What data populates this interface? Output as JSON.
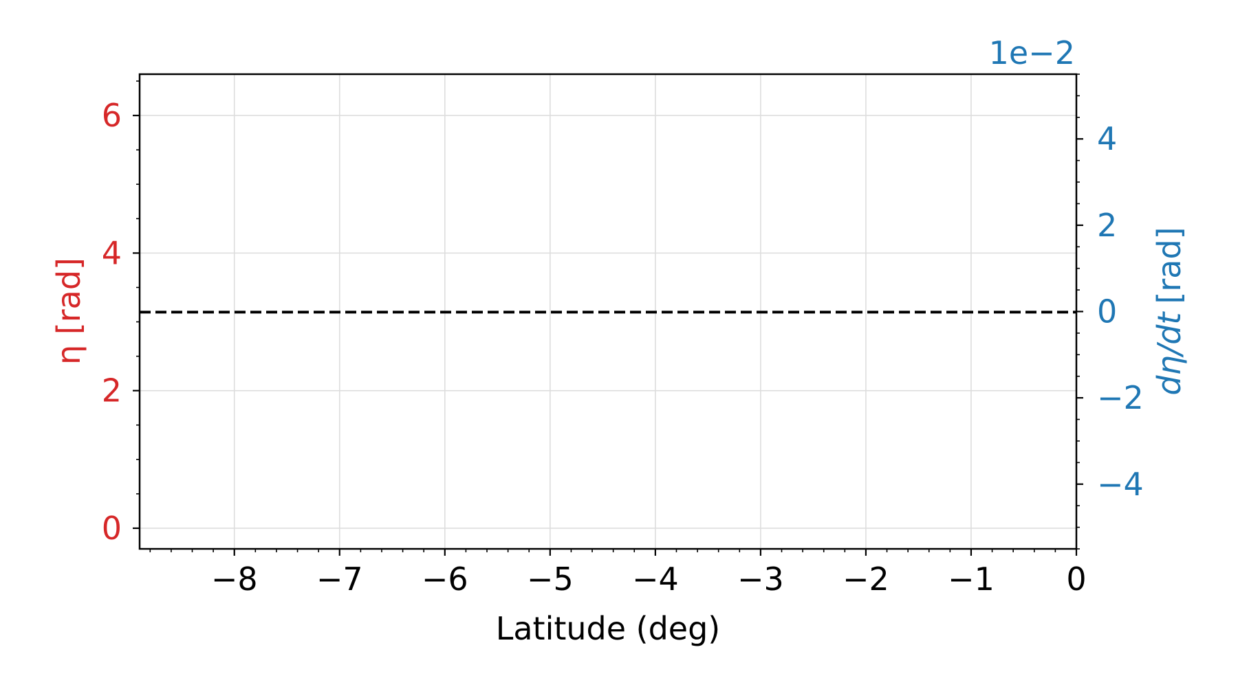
{
  "chart_data": {
    "type": "line",
    "xlabel": "Latitude (deg)",
    "ylabel_left": "η [rad]",
    "ylabel_right_var": "dη/dt",
    "ylabel_right_unit": "[rad]",
    "right_axis_multiplier": "1e−2",
    "xlim": [
      -8.9,
      0
    ],
    "ylim_left": [
      -0.3,
      6.6
    ],
    "ylim_right": [
      -5.5,
      5.5
    ],
    "x_ticks": [
      -8,
      -7,
      -6,
      -5,
      -4,
      -3,
      -2,
      -1,
      0
    ],
    "x_tick_labels": [
      "−8",
      "−7",
      "−6",
      "−5",
      "−4",
      "−3",
      "−2",
      "−1",
      "0"
    ],
    "y_left_ticks": [
      0,
      2,
      4,
      6
    ],
    "y_left_tick_labels": [
      "0",
      "2",
      "4",
      "6"
    ],
    "y_right_ticks": [
      -4,
      -2,
      0,
      2,
      4
    ],
    "y_right_tick_labels": [
      "−4",
      "−2",
      "0",
      "2",
      "4"
    ],
    "grid": true,
    "series": [
      {
        "axis": "left",
        "style": "dashed",
        "color": "#000000",
        "x": [
          -8.9,
          0
        ],
        "y": [
          3.1416,
          3.1416
        ]
      }
    ],
    "colors": {
      "left_axis": "#d62728",
      "right_axis": "#1f77b4",
      "grid": "#dddddd",
      "axes": "#000000"
    }
  }
}
